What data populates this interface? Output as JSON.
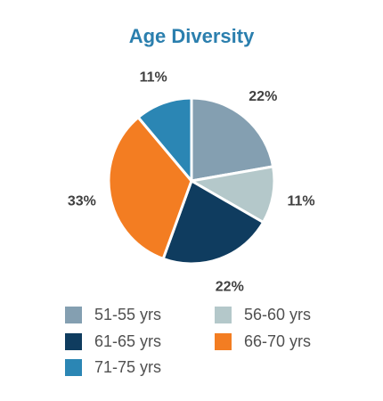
{
  "chart_data": {
    "type": "pie",
    "title": "Age Diversity",
    "categories": [
      "51-55 yrs",
      "56-60 yrs",
      "61-65 yrs",
      "66-70 yrs",
      "71-75 yrs"
    ],
    "values": [
      22,
      11,
      22,
      33,
      11
    ],
    "value_labels": [
      "22%",
      "11%",
      "22%",
      "33%",
      "11%"
    ],
    "colors": [
      "#849fb1",
      "#b4c8ca",
      "#0f3c5f",
      "#f37d22",
      "#2b86b4"
    ],
    "legend_position": "bottom"
  }
}
